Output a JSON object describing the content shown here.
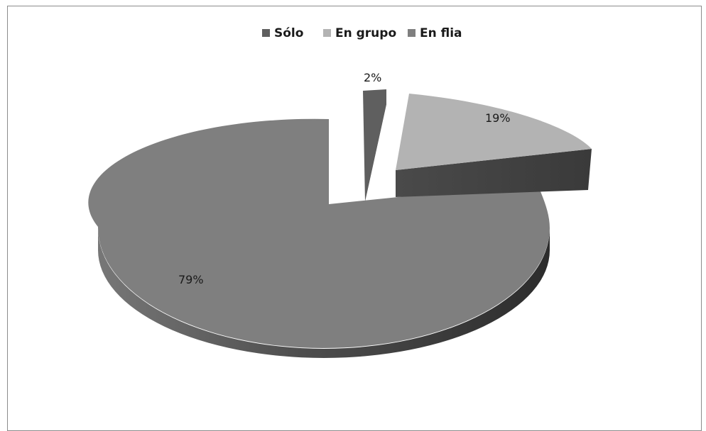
{
  "chart_data": {
    "type": "pie",
    "style": "3d-exploded",
    "title": "",
    "legend_position": "top",
    "categories": [
      "Sólo",
      "En grupo",
      "En flia"
    ],
    "values": [
      2,
      19,
      79
    ],
    "labels": [
      "2%",
      "19%",
      "79%"
    ],
    "colors": {
      "Sólo": "#5f5f5f",
      "En grupo": "#b3b3b3",
      "En flia": "#7f7f7f"
    }
  }
}
